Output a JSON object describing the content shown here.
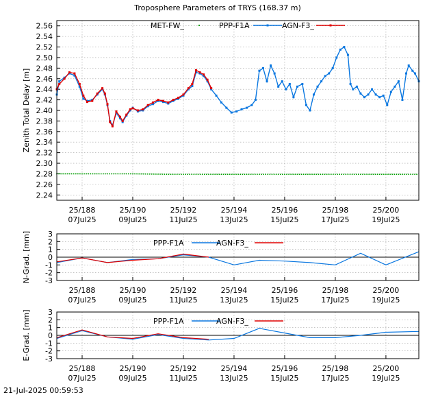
{
  "title": "Troposphere Parameters of TRYS (168.37 m)",
  "timestamp": "21-Jul-2025 00:59:53",
  "colors": {
    "met": "#00a000",
    "ppp": "#0a77e0",
    "agn": "#e00000",
    "zero": "#000000"
  },
  "x_ticks": [
    {
      "doy": 188,
      "top": "25/188",
      "bottom": "07Jul25"
    },
    {
      "doy": 190,
      "top": "25/190",
      "bottom": "09Jul25"
    },
    {
      "doy": 192,
      "top": "25/192",
      "bottom": "11Jul25"
    },
    {
      "doy": 194,
      "top": "25/194",
      "bottom": "13Jul25"
    },
    {
      "doy": 196,
      "top": "25/196",
      "bottom": "15Jul25"
    },
    {
      "doy": 198,
      "top": "25/198",
      "bottom": "17Jul25"
    },
    {
      "doy": 200,
      "top": "25/200",
      "bottom": "19Jul25"
    }
  ],
  "chart_data": [
    {
      "type": "line",
      "panel": "ztd",
      "ylabel": "Zenith Total Delay [m]",
      "ylim": [
        2.23,
        2.57
      ],
      "yticks": [
        "2.24",
        "2.26",
        "2.28",
        "2.30",
        "2.32",
        "2.34",
        "2.36",
        "2.38",
        "2.40",
        "2.42",
        "2.44",
        "2.46",
        "2.48",
        "2.50",
        "2.52",
        "2.54",
        "2.56"
      ],
      "xlim": [
        187.0,
        201.3
      ],
      "grid": true,
      "legend": "top",
      "series": [
        {
          "name": "MET-FW_",
          "style": "dots",
          "color_key": "met",
          "points": [
            [
              187.0,
              2.28
            ],
            [
              188.5,
              2.28
            ],
            [
              190.0,
              2.28
            ],
            [
              191.5,
              2.279
            ],
            [
              193.0,
              2.279
            ],
            [
              194.5,
              2.279
            ],
            [
              196.0,
              2.279
            ],
            [
              197.5,
              2.279
            ],
            [
              199.0,
              2.279
            ],
            [
              200.5,
              2.279
            ],
            [
              201.3,
              2.279
            ]
          ]
        },
        {
          "name": "PPP-F1A",
          "style": "line-points",
          "color_key": "ppp",
          "points": [
            [
              187.0,
              2.43
            ],
            [
              187.1,
              2.455
            ],
            [
              187.3,
              2.462
            ],
            [
              187.5,
              2.47
            ],
            [
              187.7,
              2.466
            ],
            [
              187.9,
              2.445
            ],
            [
              188.05,
              2.422
            ],
            [
              188.2,
              2.418
            ],
            [
              188.4,
              2.42
            ],
            [
              188.6,
              2.43
            ],
            [
              188.8,
              2.44
            ],
            [
              188.9,
              2.43
            ],
            [
              189.0,
              2.41
            ],
            [
              189.1,
              2.38
            ],
            [
              189.2,
              2.372
            ],
            [
              189.35,
              2.395
            ],
            [
              189.5,
              2.385
            ],
            [
              189.6,
              2.378
            ],
            [
              189.75,
              2.39
            ],
            [
              189.9,
              2.4
            ],
            [
              190.0,
              2.405
            ],
            [
              190.2,
              2.398
            ],
            [
              190.4,
              2.4
            ],
            [
              190.6,
              2.408
            ],
            [
              190.8,
              2.412
            ],
            [
              191.0,
              2.418
            ],
            [
              191.2,
              2.416
            ],
            [
              191.4,
              2.413
            ],
            [
              191.6,
              2.418
            ],
            [
              191.8,
              2.422
            ],
            [
              192.0,
              2.428
            ],
            [
              192.2,
              2.44
            ],
            [
              192.35,
              2.446
            ],
            [
              192.5,
              2.472
            ],
            [
              192.65,
              2.47
            ],
            [
              192.8,
              2.465
            ],
            [
              192.95,
              2.455
            ],
            [
              193.1,
              2.44
            ],
            [
              193.3,
              2.428
            ],
            [
              193.5,
              2.415
            ],
            [
              193.7,
              2.405
            ],
            [
              193.9,
              2.396
            ],
            [
              194.1,
              2.398
            ],
            [
              194.3,
              2.402
            ],
            [
              194.5,
              2.405
            ],
            [
              194.7,
              2.41
            ],
            [
              194.85,
              2.42
            ],
            [
              195.0,
              2.475
            ],
            [
              195.15,
              2.48
            ],
            [
              195.3,
              2.455
            ],
            [
              195.45,
              2.485
            ],
            [
              195.6,
              2.47
            ],
            [
              195.75,
              2.445
            ],
            [
              195.9,
              2.455
            ],
            [
              196.05,
              2.44
            ],
            [
              196.2,
              2.45
            ],
            [
              196.35,
              2.425
            ],
            [
              196.5,
              2.445
            ],
            [
              196.7,
              2.45
            ],
            [
              196.85,
              2.41
            ],
            [
              197.0,
              2.4
            ],
            [
              197.15,
              2.43
            ],
            [
              197.3,
              2.445
            ],
            [
              197.45,
              2.455
            ],
            [
              197.6,
              2.465
            ],
            [
              197.75,
              2.47
            ],
            [
              197.9,
              2.48
            ],
            [
              198.05,
              2.5
            ],
            [
              198.2,
              2.515
            ],
            [
              198.35,
              2.52
            ],
            [
              198.5,
              2.505
            ],
            [
              198.6,
              2.45
            ],
            [
              198.7,
              2.44
            ],
            [
              198.85,
              2.445
            ],
            [
              199.0,
              2.432
            ],
            [
              199.15,
              2.425
            ],
            [
              199.3,
              2.43
            ],
            [
              199.45,
              2.44
            ],
            [
              199.6,
              2.43
            ],
            [
              199.75,
              2.425
            ],
            [
              199.9,
              2.428
            ],
            [
              200.05,
              2.41
            ],
            [
              200.2,
              2.435
            ],
            [
              200.35,
              2.445
            ],
            [
              200.5,
              2.455
            ],
            [
              200.65,
              2.42
            ],
            [
              200.8,
              2.47
            ],
            [
              200.9,
              2.485
            ],
            [
              201.05,
              2.475
            ],
            [
              201.15,
              2.47
            ],
            [
              201.3,
              2.455
            ]
          ]
        },
        {
          "name": "AGN-F3_",
          "style": "line-points",
          "color_key": "agn",
          "points": [
            [
              187.0,
              2.44
            ],
            [
              187.1,
              2.45
            ],
            [
              187.3,
              2.46
            ],
            [
              187.5,
              2.472
            ],
            [
              187.7,
              2.47
            ],
            [
              187.9,
              2.45
            ],
            [
              188.05,
              2.428
            ],
            [
              188.2,
              2.416
            ],
            [
              188.4,
              2.418
            ],
            [
              188.6,
              2.432
            ],
            [
              188.8,
              2.442
            ],
            [
              188.9,
              2.432
            ],
            [
              189.0,
              2.412
            ],
            [
              189.1,
              2.378
            ],
            [
              189.2,
              2.37
            ],
            [
              189.35,
              2.398
            ],
            [
              189.5,
              2.388
            ],
            [
              189.6,
              2.38
            ],
            [
              189.75,
              2.392
            ],
            [
              189.9,
              2.402
            ],
            [
              190.0,
              2.404
            ],
            [
              190.2,
              2.4
            ],
            [
              190.4,
              2.402
            ],
            [
              190.6,
              2.41
            ],
            [
              190.8,
              2.415
            ],
            [
              191.0,
              2.42
            ],
            [
              191.2,
              2.418
            ],
            [
              191.4,
              2.415
            ],
            [
              191.6,
              2.42
            ],
            [
              191.8,
              2.424
            ],
            [
              192.0,
              2.43
            ],
            [
              192.2,
              2.442
            ],
            [
              192.35,
              2.45
            ],
            [
              192.5,
              2.476
            ],
            [
              192.65,
              2.472
            ],
            [
              192.8,
              2.468
            ],
            [
              192.95,
              2.458
            ],
            [
              193.1,
              2.442
            ]
          ]
        }
      ]
    },
    {
      "type": "line",
      "panel": "ngrad",
      "ylabel": "N-Grad. [mm]",
      "ylim": [
        -3,
        3
      ],
      "yticks": [
        "-3",
        "-2",
        "-1",
        "0",
        "1",
        "2",
        "3"
      ],
      "xlim": [
        187.0,
        201.3
      ],
      "grid": true,
      "legend": "top",
      "series": [
        {
          "name": "PPP-F1A",
          "color_key": "ppp",
          "points": [
            [
              187.0,
              -0.7
            ],
            [
              188.0,
              -0.1
            ],
            [
              189.0,
              -0.7
            ],
            [
              190.0,
              -0.3
            ],
            [
              191.0,
              -0.2
            ],
            [
              192.0,
              0.3
            ],
            [
              193.0,
              0.0
            ],
            [
              194.0,
              -1.0
            ],
            [
              195.0,
              -0.4
            ],
            [
              196.0,
              -0.5
            ],
            [
              197.0,
              -0.7
            ],
            [
              198.0,
              -1.0
            ],
            [
              199.0,
              0.5
            ],
            [
              200.0,
              -1.0
            ],
            [
              201.3,
              0.7
            ]
          ]
        },
        {
          "name": "AGN-F3_",
          "color_key": "agn",
          "points": [
            [
              187.0,
              -0.6
            ],
            [
              188.0,
              -0.1
            ],
            [
              189.0,
              -0.7
            ],
            [
              190.0,
              -0.4
            ],
            [
              191.0,
              -0.2
            ],
            [
              192.0,
              0.4
            ],
            [
              193.0,
              0.0
            ]
          ]
        }
      ]
    },
    {
      "type": "line",
      "panel": "egrad",
      "ylabel": "E-Grad. [mm]",
      "ylim": [
        -3,
        3
      ],
      "yticks": [
        "-3",
        "-2",
        "-1",
        "0",
        "1",
        "2",
        "3"
      ],
      "xlim": [
        187.0,
        201.3
      ],
      "grid": true,
      "legend": "top",
      "series": [
        {
          "name": "PPP-F1A",
          "color_key": "ppp",
          "points": [
            [
              187.0,
              -0.4
            ],
            [
              188.0,
              0.6
            ],
            [
              189.0,
              -0.2
            ],
            [
              190.0,
              -0.5
            ],
            [
              191.0,
              0.1
            ],
            [
              192.0,
              -0.4
            ],
            [
              193.0,
              -0.6
            ],
            [
              194.0,
              -0.4
            ],
            [
              195.0,
              0.9
            ],
            [
              196.0,
              0.3
            ],
            [
              197.0,
              -0.3
            ],
            [
              198.0,
              -0.3
            ],
            [
              199.0,
              0.0
            ],
            [
              200.0,
              0.4
            ],
            [
              201.3,
              0.5
            ]
          ]
        },
        {
          "name": "AGN-F3_",
          "color_key": "agn",
          "points": [
            [
              187.0,
              -0.3
            ],
            [
              188.0,
              0.7
            ],
            [
              189.0,
              -0.2
            ],
            [
              190.0,
              -0.4
            ],
            [
              191.0,
              0.2
            ],
            [
              192.0,
              -0.3
            ],
            [
              193.0,
              -0.5
            ]
          ]
        }
      ]
    }
  ]
}
